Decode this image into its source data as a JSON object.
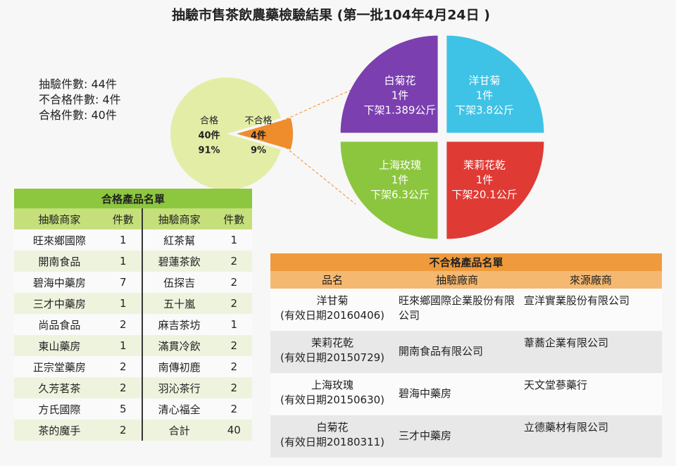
{
  "title": "抽驗市售茶飲農藥檢驗結果 (第一批104年4月24日 )",
  "summary": [
    "抽驗件數: 44件",
    "不合格件數: 4件",
    "合格件數: 40件"
  ],
  "chart_data": [
    {
      "type": "pie",
      "categories": [
        "合格",
        "不合格"
      ],
      "values": [
        91,
        9
      ],
      "value_labels": [
        "91%",
        "9%"
      ],
      "count_labels": [
        "40件",
        "4件"
      ],
      "colors": [
        "#e4eda6",
        "#ef8c2c"
      ],
      "explode": [
        false,
        true
      ]
    },
    {
      "type": "pie",
      "categories": [
        "洋甘菊",
        "茉莉花乾",
        "上海玫瑰",
        "白菊花"
      ],
      "values": [
        1,
        1,
        1,
        1
      ],
      "value_labels": [
        "1件",
        "1件",
        "1件",
        "1件"
      ],
      "notes": [
        "下架3.8公斤",
        "下架20.1公斤",
        "下架6.3公斤",
        "下架1.389公斤"
      ],
      "colors": [
        "#3ec3e6",
        "#e03a35",
        "#8cc63f",
        "#7b3fb0"
      ],
      "explode": [
        true,
        true,
        true,
        true
      ]
    }
  ],
  "passed_table": {
    "title": "合格產品名單",
    "headers": [
      "抽驗商家",
      "件數",
      "抽驗商家",
      "件數"
    ],
    "rows": [
      [
        "旺來鄉國際",
        1,
        "紅茶幫",
        1
      ],
      [
        "開南食品",
        1,
        "碧蓮茶飲",
        2
      ],
      [
        "碧海中藥房",
        7,
        "伍探吉",
        2
      ],
      [
        "三才中藥房",
        1,
        "五十嵐",
        2
      ],
      [
        "尚品食品",
        2,
        "麻吉茶坊",
        1
      ],
      [
        "東山藥房",
        1,
        "滿貫冷飲",
        2
      ],
      [
        "正宗堂藥房",
        2,
        "南傳初鹿",
        2
      ],
      [
        "久芳茗茶",
        2,
        "羽沁茶行",
        2
      ],
      [
        "方氏國際",
        5,
        "清心福全",
        2
      ],
      [
        "茶的魔手",
        2,
        "合計",
        40
      ]
    ]
  },
  "failed_table": {
    "title": "不合格產品名單",
    "headers": [
      "品名",
      "抽驗廠商",
      "來源廠商"
    ],
    "rows": [
      {
        "product": "洋甘菊",
        "expiry": "(有效日期20160406)",
        "inspected_vendor": "旺來鄉國際企業股份有限公司",
        "source_vendor": "宣洋實業股份有限公司"
      },
      {
        "product": "茉莉花乾",
        "expiry": "(有效日期20150729)",
        "inspected_vendor": "開南食品有限公司",
        "source_vendor": "葦蕎企業有限公司"
      },
      {
        "product": "上海玫瑰",
        "expiry": "(有效日期20150630)",
        "inspected_vendor": "碧海中藥房",
        "source_vendor": "天文堂蔘藥行"
      },
      {
        "product": "白菊花",
        "expiry": "(有效日期20180311)",
        "inspected_vendor": "三才中藥房",
        "source_vendor": "立德藥材有限公司"
      }
    ]
  }
}
